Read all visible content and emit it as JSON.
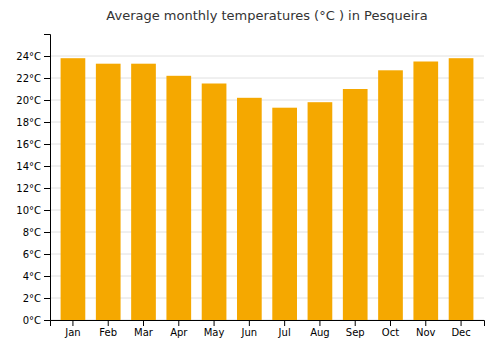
{
  "chart_data": {
    "type": "bar",
    "title": "Average monthly temperatures (°C ) in Pesqueira",
    "categories": [
      "Jan",
      "Feb",
      "Mar",
      "Apr",
      "May",
      "Jun",
      "Jul",
      "Aug",
      "Sep",
      "Oct",
      "Nov",
      "Dec"
    ],
    "values": [
      23.8,
      23.3,
      23.3,
      22.2,
      21.5,
      20.2,
      19.3,
      19.8,
      21.0,
      22.7,
      23.5,
      23.8
    ],
    "color": "#F5A800",
    "ylim": [
      0,
      26
    ],
    "yticks": [
      {
        "value": 0,
        "label": "0°C"
      },
      {
        "value": 2,
        "label": "2°C"
      },
      {
        "value": 4,
        "label": "4°C"
      },
      {
        "value": 6,
        "label": "6°C"
      },
      {
        "value": 8,
        "label": "8°C"
      },
      {
        "value": 10,
        "label": "10°C"
      },
      {
        "value": 12,
        "label": "12°C"
      },
      {
        "value": 14,
        "label": "14°C"
      },
      {
        "value": 16,
        "label": "16°C"
      },
      {
        "value": 18,
        "label": "18°C"
      },
      {
        "value": 20,
        "label": "20°C"
      },
      {
        "value": 22,
        "label": "22°C"
      },
      {
        "value": 24,
        "label": "24°C"
      }
    ],
    "grid": true
  }
}
